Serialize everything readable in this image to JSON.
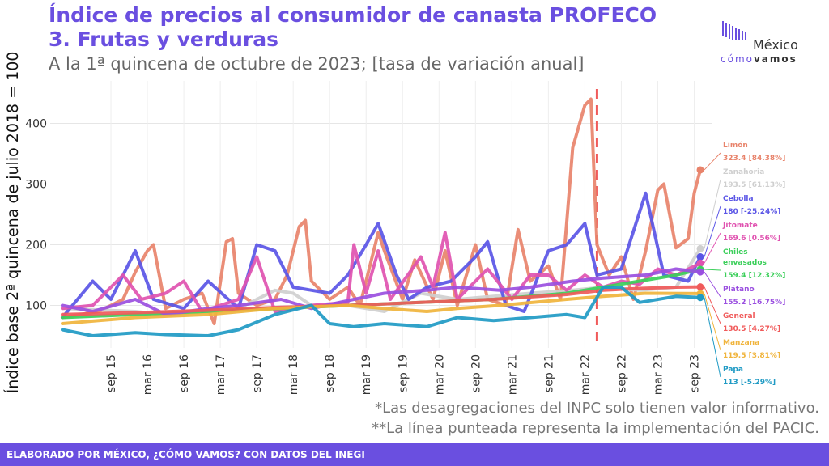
{
  "header": {
    "title_line1": "Índice de precios al consumidor de canasta PROFECO",
    "title_line2": "3. Frutas y verduras",
    "subtitle": "A la 1ª quincena de octubre de 2023; [tasa de variación anual]"
  },
  "logo": {
    "name": "México",
    "tagline_part1": "cómo",
    "tagline_part2": "vamos"
  },
  "notes": {
    "line1": "*Las desagregaciones del INPC solo tienen valor informativo.",
    "line2": "**La línea punteada representa la implementación del PACIC."
  },
  "footer": {
    "text": "ELABORADO POR MÉXICO, ¿CÓMO VAMOS? CON DATOS DEL INEGI"
  },
  "chart_data": {
    "type": "line",
    "ylabel": "Índice base 2ª quincena de julio 2018 = 100",
    "xlabel": "",
    "x_start": "2015-01",
    "x_end": "2023-10",
    "x_ticks": [
      "sep 15",
      "mar 16",
      "sep 16",
      "mar 17",
      "sep 17",
      "mar 18",
      "sep 18",
      "mar 19",
      "sep 19",
      "mar 20",
      "sep 20",
      "mar 21",
      "sep 21",
      "mar 22",
      "sep 22",
      "mar 23",
      "sep 23"
    ],
    "ylim": [
      30,
      470
    ],
    "y_ticks": [
      100,
      200,
      300,
      400
    ],
    "grid": true,
    "vline": {
      "date": "2022-05",
      "style": "dashed",
      "color": "#f05a5a"
    },
    "series": [
      {
        "name": "Limón",
        "color": "#e8836b",
        "points": [
          [
            "2015-01",
            80
          ],
          [
            "2015-07",
            90
          ],
          [
            "2015-11",
            110
          ],
          [
            "2016-01",
            155
          ],
          [
            "2016-03",
            190
          ],
          [
            "2016-04",
            200
          ],
          [
            "2016-06",
            95
          ],
          [
            "2016-09",
            110
          ],
          [
            "2016-12",
            120
          ],
          [
            "2017-02",
            70
          ],
          [
            "2017-04",
            205
          ],
          [
            "2017-05",
            210
          ],
          [
            "2017-06",
            120
          ],
          [
            "2017-09",
            100
          ],
          [
            "2017-12",
            110
          ],
          [
            "2018-02",
            150
          ],
          [
            "2018-04",
            230
          ],
          [
            "2018-05",
            240
          ],
          [
            "2018-06",
            140
          ],
          [
            "2018-09",
            110
          ],
          [
            "2018-12",
            130
          ],
          [
            "2019-02",
            100
          ],
          [
            "2019-05",
            220
          ],
          [
            "2019-06",
            190
          ],
          [
            "2019-09",
            110
          ],
          [
            "2019-11",
            175
          ],
          [
            "2020-02",
            110
          ],
          [
            "2020-04",
            190
          ],
          [
            "2020-06",
            100
          ],
          [
            "2020-09",
            200
          ],
          [
            "2020-11",
            110
          ],
          [
            "2021-02",
            100
          ],
          [
            "2021-04",
            225
          ],
          [
            "2021-06",
            140
          ],
          [
            "2021-09",
            165
          ],
          [
            "2021-11",
            110
          ],
          [
            "2022-01",
            360
          ],
          [
            "2022-03",
            430
          ],
          [
            "2022-04",
            440
          ],
          [
            "2022-05",
            200
          ],
          [
            "2022-07",
            150
          ],
          [
            "2022-09",
            180
          ],
          [
            "2022-11",
            110
          ],
          [
            "2023-01",
            190
          ],
          [
            "2023-03",
            290
          ],
          [
            "2023-04",
            300
          ],
          [
            "2023-06",
            195
          ],
          [
            "2023-08",
            210
          ],
          [
            "2023-09",
            285
          ],
          [
            "2023-10",
            323.4
          ]
        ]
      },
      {
        "name": "Zanahoria",
        "color": "#cfcfcf",
        "points": [
          [
            "2015-01",
            95
          ],
          [
            "2016-01",
            90
          ],
          [
            "2016-06",
            85
          ],
          [
            "2017-01",
            90
          ],
          [
            "2017-06",
            95
          ],
          [
            "2017-09",
            110
          ],
          [
            "2017-12",
            125
          ],
          [
            "2018-03",
            120
          ],
          [
            "2018-06",
            100
          ],
          [
            "2018-12",
            100
          ],
          [
            "2019-06",
            90
          ],
          [
            "2019-12",
            120
          ],
          [
            "2020-06",
            110
          ],
          [
            "2020-12",
            115
          ],
          [
            "2021-06",
            120
          ],
          [
            "2022-01",
            125
          ],
          [
            "2022-06",
            130
          ],
          [
            "2022-12",
            125
          ],
          [
            "2023-06",
            130
          ],
          [
            "2023-10",
            193.5
          ]
        ]
      },
      {
        "name": "Cebolla",
        "color": "#5a55e6",
        "points": [
          [
            "2015-01",
            80
          ],
          [
            "2015-06",
            140
          ],
          [
            "2015-09",
            110
          ],
          [
            "2016-01",
            190
          ],
          [
            "2016-04",
            110
          ],
          [
            "2016-09",
            95
          ],
          [
            "2017-01",
            140
          ],
          [
            "2017-06",
            95
          ],
          [
            "2017-09",
            200
          ],
          [
            "2017-12",
            190
          ],
          [
            "2018-03",
            130
          ],
          [
            "2018-09",
            120
          ],
          [
            "2018-12",
            150
          ],
          [
            "2019-03",
            200
          ],
          [
            "2019-05",
            235
          ],
          [
            "2019-08",
            150
          ],
          [
            "2019-10",
            110
          ],
          [
            "2020-01",
            130
          ],
          [
            "2020-05",
            140
          ],
          [
            "2020-09",
            180
          ],
          [
            "2020-11",
            205
          ],
          [
            "2021-02",
            100
          ],
          [
            "2021-05",
            90
          ],
          [
            "2021-09",
            190
          ],
          [
            "2021-12",
            200
          ],
          [
            "2022-03",
            235
          ],
          [
            "2022-05",
            150
          ],
          [
            "2022-09",
            160
          ],
          [
            "2023-01",
            285
          ],
          [
            "2023-04",
            150
          ],
          [
            "2023-08",
            140
          ],
          [
            "2023-10",
            180
          ]
        ]
      },
      {
        "name": "Jitomate",
        "color": "#e052b0",
        "points": [
          [
            "2015-01",
            95
          ],
          [
            "2015-06",
            100
          ],
          [
            "2015-11",
            150
          ],
          [
            "2016-02",
            110
          ],
          [
            "2016-06",
            120
          ],
          [
            "2016-09",
            140
          ],
          [
            "2016-12",
            90
          ],
          [
            "2017-06",
            110
          ],
          [
            "2017-09",
            180
          ],
          [
            "2017-12",
            90
          ],
          [
            "2018-06",
            100
          ],
          [
            "2018-12",
            105
          ],
          [
            "2019-01",
            200
          ],
          [
            "2019-03",
            120
          ],
          [
            "2019-05",
            190
          ],
          [
            "2019-07",
            110
          ],
          [
            "2019-12",
            180
          ],
          [
            "2020-02",
            130
          ],
          [
            "2020-04",
            220
          ],
          [
            "2020-06",
            110
          ],
          [
            "2020-11",
            160
          ],
          [
            "2021-03",
            110
          ],
          [
            "2021-06",
            150
          ],
          [
            "2021-09",
            150
          ],
          [
            "2021-12",
            125
          ],
          [
            "2022-03",
            150
          ],
          [
            "2022-06",
            130
          ],
          [
            "2022-09",
            140
          ],
          [
            "2022-12",
            135
          ],
          [
            "2023-03",
            160
          ],
          [
            "2023-06",
            150
          ],
          [
            "2023-10",
            169.6
          ]
        ]
      },
      {
        "name": "Chiles envasados",
        "color": "#3bcf5a",
        "points": [
          [
            "2015-01",
            80
          ],
          [
            "2016-01",
            85
          ],
          [
            "2017-01",
            90
          ],
          [
            "2018-01",
            95
          ],
          [
            "2018-12",
            100
          ],
          [
            "2019-12",
            105
          ],
          [
            "2020-12",
            110
          ],
          [
            "2021-06",
            115
          ],
          [
            "2021-12",
            120
          ],
          [
            "2022-06",
            130
          ],
          [
            "2022-12",
            140
          ],
          [
            "2023-06",
            150
          ],
          [
            "2023-10",
            159.4
          ]
        ]
      },
      {
        "name": "Plátano",
        "color": "#9a4fe0",
        "points": [
          [
            "2015-01",
            100
          ],
          [
            "2015-06",
            90
          ],
          [
            "2016-01",
            110
          ],
          [
            "2016-06",
            85
          ],
          [
            "2017-01",
            95
          ],
          [
            "2017-06",
            100
          ],
          [
            "2018-01",
            110
          ],
          [
            "2018-06",
            95
          ],
          [
            "2019-01",
            110
          ],
          [
            "2019-06",
            120
          ],
          [
            "2020-01",
            125
          ],
          [
            "2020-06",
            130
          ],
          [
            "2021-01",
            125
          ],
          [
            "2021-06",
            130
          ],
          [
            "2022-01",
            140
          ],
          [
            "2022-06",
            145
          ],
          [
            "2023-01",
            150
          ],
          [
            "2023-06",
            160
          ],
          [
            "2023-10",
            155.2
          ]
        ]
      },
      {
        "name": "General",
        "color": "#f05a5a",
        "points": [
          [
            "2015-01",
            85
          ],
          [
            "2016-01",
            88
          ],
          [
            "2017-01",
            92
          ],
          [
            "2018-01",
            97
          ],
          [
            "2018-12",
            100
          ],
          [
            "2019-12",
            105
          ],
          [
            "2020-12",
            110
          ],
          [
            "2021-12",
            118
          ],
          [
            "2022-06",
            125
          ],
          [
            "2022-12",
            128
          ],
          [
            "2023-06",
            130
          ],
          [
            "2023-10",
            130.5
          ]
        ]
      },
      {
        "name": "Manzana",
        "color": "#f0b43c",
        "points": [
          [
            "2015-01",
            70
          ],
          [
            "2016-01",
            80
          ],
          [
            "2017-01",
            85
          ],
          [
            "2017-12",
            95
          ],
          [
            "2018-12",
            100
          ],
          [
            "2019-06",
            95
          ],
          [
            "2020-01",
            90
          ],
          [
            "2020-06",
            95
          ],
          [
            "2021-01",
            100
          ],
          [
            "2021-12",
            110
          ],
          [
            "2022-06",
            115
          ],
          [
            "2023-01",
            120
          ],
          [
            "2023-10",
            119.5
          ]
        ]
      },
      {
        "name": "Papa",
        "color": "#1f9ac4",
        "points": [
          [
            "2015-01",
            60
          ],
          [
            "2015-06",
            50
          ],
          [
            "2016-01",
            55
          ],
          [
            "2016-06",
            52
          ],
          [
            "2017-01",
            50
          ],
          [
            "2017-06",
            60
          ],
          [
            "2017-12",
            85
          ],
          [
            "2018-06",
            100
          ],
          [
            "2018-09",
            70
          ],
          [
            "2019-01",
            65
          ],
          [
            "2019-06",
            70
          ],
          [
            "2020-01",
            65
          ],
          [
            "2020-06",
            80
          ],
          [
            "2020-12",
            75
          ],
          [
            "2021-06",
            80
          ],
          [
            "2021-12",
            85
          ],
          [
            "2022-03",
            80
          ],
          [
            "2022-06",
            130
          ],
          [
            "2022-09",
            130
          ],
          [
            "2022-12",
            105
          ],
          [
            "2023-06",
            115
          ],
          [
            "2023-10",
            113
          ]
        ]
      }
    ],
    "labels": [
      {
        "series": "Limón",
        "name": "Limón",
        "value": "323.4 [84.38%]"
      },
      {
        "series": "Zanahoria",
        "name": "Zanahoria",
        "value": "193.5 [61.13%]"
      },
      {
        "series": "Cebolla",
        "name": "Cebolla",
        "value": "180 [-25.24%]"
      },
      {
        "series": "Jitomate",
        "name": "Jitomate",
        "value": "169.6 [0.56%]"
      },
      {
        "series": "Chiles envasados",
        "name": "Chiles envasados",
        "value": "159.4 [12.32%]"
      },
      {
        "series": "Plátano",
        "name": "Plátano",
        "value": "155.2 [16.75%]"
      },
      {
        "series": "General",
        "name": "General",
        "value": "130.5 [4.27%]"
      },
      {
        "series": "Manzana",
        "name": "Manzana",
        "value": "119.5 [3.81%]"
      },
      {
        "series": "Papa",
        "name": "Papa",
        "value": "113 [-5.29%]"
      }
    ]
  }
}
